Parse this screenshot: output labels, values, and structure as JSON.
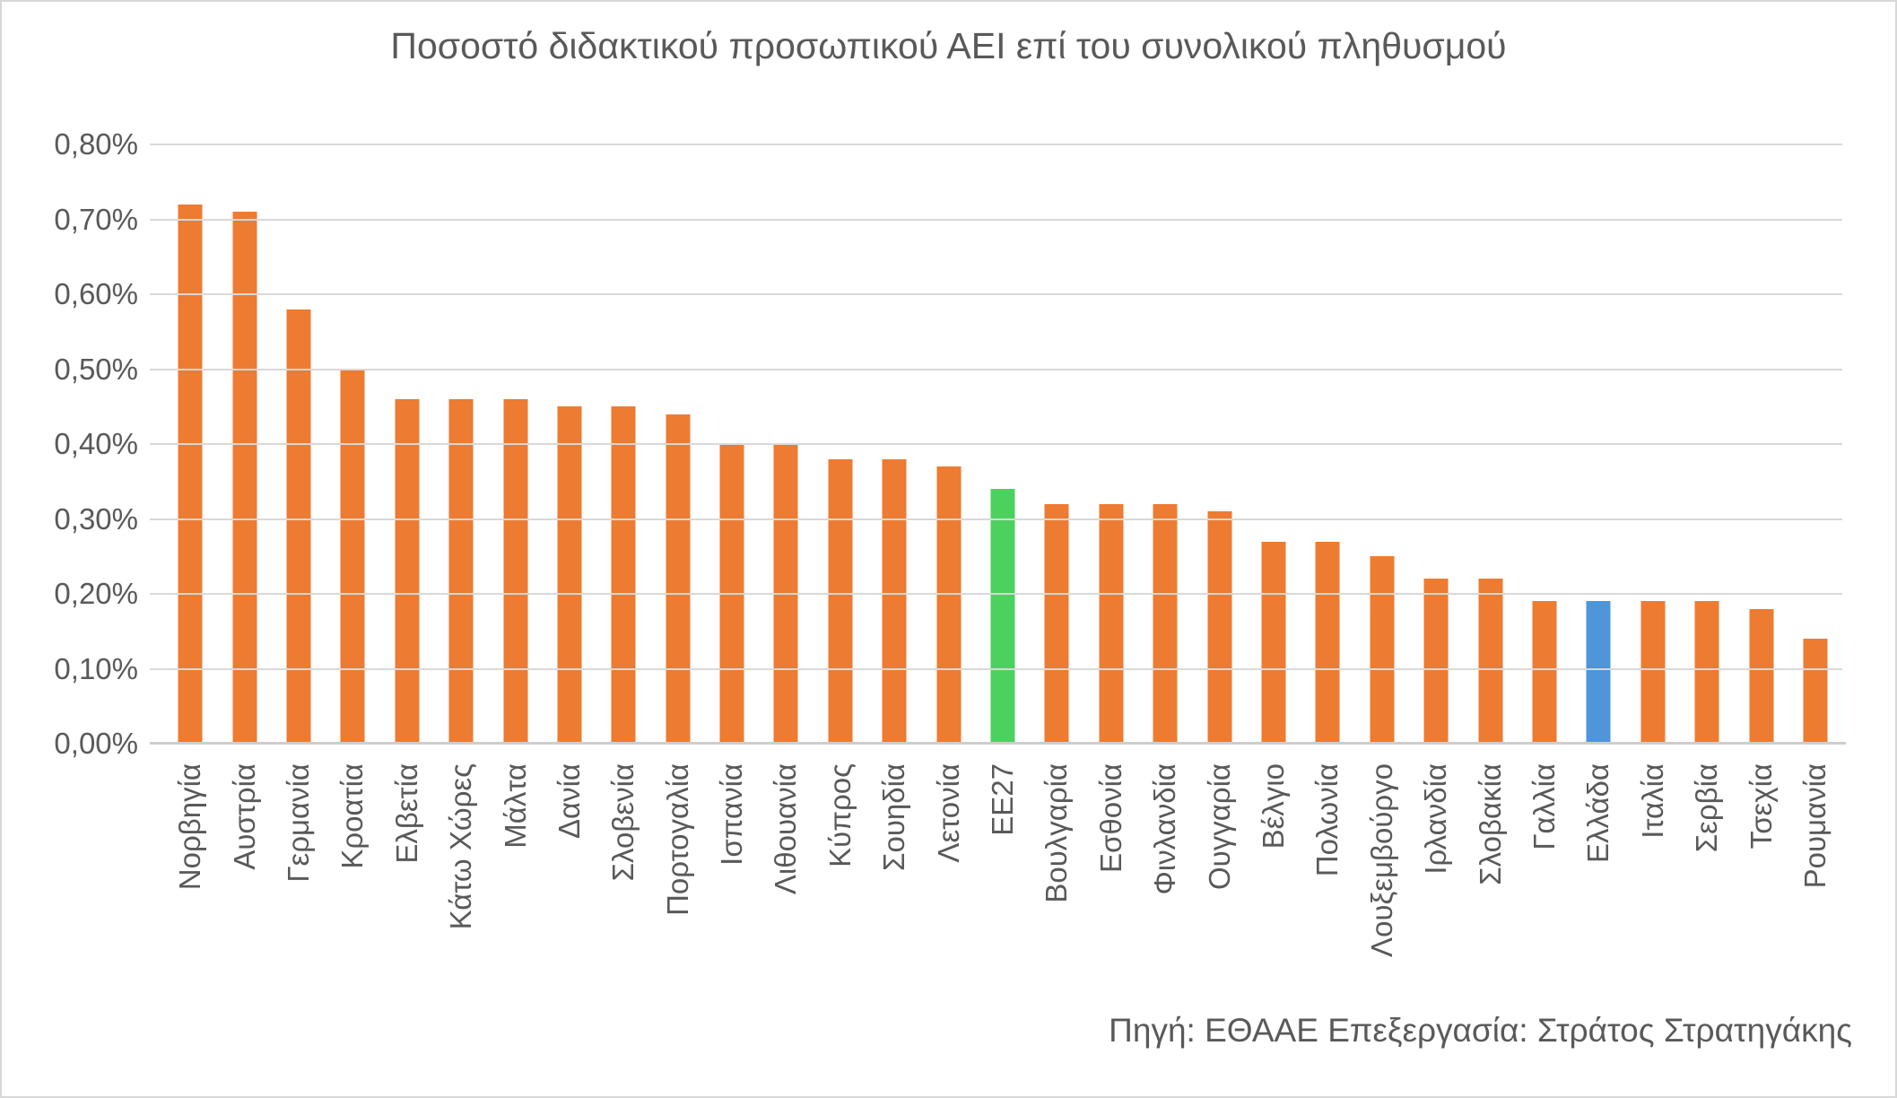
{
  "title": "Ποσοστό διδακτικού προσωπικού ΑΕΙ επί του συνολικού πληθυσμού",
  "source_note": "Πηγή: ΕΘΑΑΕ Επεξεργασία: Στράτος Στρατηγάκης",
  "y_axis": {
    "tick_labels": [
      "0,80%",
      "0,70%",
      "0,60%",
      "0,50%",
      "0,40%",
      "0,30%",
      "0,20%",
      "0,10%",
      "0,00%"
    ],
    "max": 0.8,
    "min": 0.0,
    "step": 0.1
  },
  "colors": {
    "bar_default": "#ED7B31",
    "bar_eu27": "#4CD15E",
    "bar_greece": "#4E95D9",
    "text": "#595959",
    "gridline": "#D9D9D9",
    "axis_line": "#CFCDCD"
  },
  "chart_data": {
    "type": "bar",
    "title": "Ποσοστό διδακτικού προσωπικού ΑΕΙ επί του συνολικού πληθυσμού",
    "xlabel": "",
    "ylabel": "",
    "unit": "%",
    "ylim": [
      0.0,
      0.8
    ],
    "grid": true,
    "legend": false,
    "categories": [
      "Νορβηγία",
      "Αυστρία",
      "Γερμανία",
      "Κροατία",
      "Ελβετία",
      "Κάτω Χώρες",
      "Μάλτα",
      "Δανία",
      "Σλοβενία",
      "Πορτογαλία",
      "Ισπανία",
      "Λιθουανία",
      "Κύπρος",
      "Σουηδία",
      "Λετονία",
      "ΕΕ27",
      "Βουλγαρία",
      "Εσθονία",
      "Φινλανδία",
      "Ουγγαρία",
      "Βέλγιο",
      "Πολωνία",
      "Λουξεμβούργο",
      "Ιρλανδία",
      "Σλοβακία",
      "Γαλλία",
      "Ελλάδα",
      "Ιταλία",
      "Σερβία",
      "Τσεχία",
      "Ρουμανία"
    ],
    "values": [
      0.72,
      0.71,
      0.58,
      0.5,
      0.46,
      0.46,
      0.46,
      0.45,
      0.45,
      0.44,
      0.4,
      0.4,
      0.38,
      0.38,
      0.37,
      0.34,
      0.32,
      0.32,
      0.32,
      0.31,
      0.27,
      0.27,
      0.25,
      0.22,
      0.22,
      0.19,
      0.19,
      0.19,
      0.19,
      0.18,
      0.14
    ],
    "highlights": [
      {
        "category": "ΕΕ27",
        "color": "#4CD15E"
      },
      {
        "category": "Ελλάδα",
        "color": "#4E95D9"
      }
    ]
  }
}
